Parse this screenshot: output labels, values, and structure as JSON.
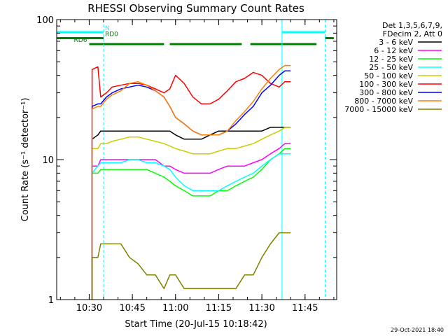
{
  "chart_data": {
    "type": "line",
    "title": "RHESSI Observing Summary Count Rates",
    "xlabel": "Start Time (20-Jul-15 10:18:42)",
    "ylabel": "Count Rate (s⁻¹ detector⁻¹)",
    "x_unit": "hh:mm",
    "xlim": [
      "10:18:42",
      "11:56:00"
    ],
    "ylim": [
      1,
      100
    ],
    "yscale": "log",
    "x_ticks": [
      "10:30",
      "10:45",
      "11:00",
      "11:15",
      "11:30",
      "11:45"
    ],
    "y_ticks": [
      "1",
      "10",
      "100"
    ],
    "legend": {
      "header": [
        "Det 1,3,5,6,7,9,",
        "FDecim 2, Att 0"
      ],
      "placement": "right"
    },
    "timestamp": "29-Oct-2021 18:40",
    "flags": [
      {
        "label": "N",
        "color": "#00ffff",
        "level": 0.88,
        "segments": [
          [
            "10:18:42",
            "10:35:00"
          ],
          [
            "11:37:00",
            "11:52:00"
          ]
        ]
      },
      {
        "label": "RD0",
        "color": "#008000",
        "level": 0.71,
        "segments": [
          [
            "10:18:42",
            "10:35:00"
          ],
          [
            "11:52:00",
            "11:55:00"
          ]
        ]
      },
      {
        "label": "RD6",
        "color": "#008000",
        "level": 0.54,
        "segments": [
          [
            "10:30:00",
            "10:56:00"
          ],
          [
            "10:58:00",
            "11:23:00"
          ],
          [
            "11:26:00",
            "11:49:00"
          ]
        ]
      }
    ],
    "vlines": [
      {
        "t": "10:35:00",
        "style": "dashed",
        "color": "#00ffff"
      },
      {
        "t": "11:37:00",
        "style": "solid",
        "color": "#00ffff"
      },
      {
        "t": "11:52:00",
        "style": "dashed",
        "color": "#00ffff"
      }
    ],
    "x": [
      "10:31",
      "10:33",
      "10:34",
      "10:36",
      "10:38",
      "10:41",
      "10:44",
      "10:47",
      "10:50",
      "10:53",
      "10:56",
      "10:58",
      "11:00",
      "11:03",
      "11:06",
      "11:09",
      "11:12",
      "11:15",
      "11:18",
      "11:21",
      "11:24",
      "11:27",
      "11:30",
      "11:33",
      "11:36",
      "11:38",
      "11:40"
    ],
    "series": [
      {
        "name": "3 - 6 keV",
        "color": "#000000",
        "values": [
          14,
          15,
          16,
          16,
          16,
          16,
          16,
          16,
          16,
          16,
          16,
          16,
          15,
          14,
          14,
          14,
          15,
          16,
          16,
          16,
          16,
          16,
          16,
          17,
          17,
          17,
          17
        ]
      },
      {
        "name": "6 - 12 keV",
        "color": "#ff00ff",
        "values": [
          9,
          9,
          10,
          10,
          10,
          10,
          10,
          10,
          10,
          10,
          9,
          9,
          8.5,
          8,
          8,
          8,
          8,
          8.5,
          9,
          9,
          9,
          9.5,
          10,
          11,
          12,
          13,
          13
        ]
      },
      {
        "name": "12 - 25 keV",
        "color": "#00ff00",
        "values": [
          8,
          8,
          8.5,
          8.5,
          8.5,
          8.5,
          8.5,
          8.5,
          8.5,
          8,
          7.5,
          7,
          6.5,
          6,
          5.5,
          5.5,
          5.5,
          6,
          6,
          6.5,
          7,
          7.5,
          8.5,
          10,
          11,
          12,
          12
        ]
      },
      {
        "name": "25 - 50 keV",
        "color": "#00ffff",
        "values": [
          8,
          9,
          9.5,
          9.5,
          9.5,
          9.5,
          10,
          10,
          9.5,
          9.5,
          9,
          8.5,
          7.5,
          6.5,
          6,
          6,
          6,
          6,
          6.5,
          7,
          7.5,
          8,
          9,
          10,
          11,
          11,
          11
        ]
      },
      {
        "name": "50 - 100 keV",
        "color": "#cccc00",
        "values": [
          12,
          12,
          13,
          13,
          13.5,
          14,
          14.5,
          14.5,
          14,
          13.5,
          13,
          12.5,
          12,
          11.5,
          11,
          11,
          11,
          11.5,
          12,
          12,
          12.5,
          13,
          14,
          15,
          16,
          17,
          17
        ]
      },
      {
        "name": "100 - 300 keV",
        "color": "#ff0000",
        "values": [
          44,
          46,
          28,
          30,
          33,
          34,
          35,
          35,
          34,
          32,
          30,
          32,
          40,
          35,
          28,
          25,
          25,
          27,
          31,
          36,
          38,
          42,
          40,
          35,
          33,
          36,
          36
        ]
      },
      {
        "name": "300 - 800 keV",
        "color": "#0000ff",
        "values": [
          24,
          25,
          25,
          28,
          30,
          32,
          33,
          34,
          33,
          31,
          28,
          24,
          20,
          18,
          16,
          15,
          15,
          15,
          16,
          18,
          21,
          24,
          30,
          34,
          40,
          43,
          43
        ]
      },
      {
        "name": "800 - 7000 keV",
        "color": "#ff8000",
        "values": [
          23,
          24,
          24,
          27,
          29,
          31,
          35,
          36,
          34,
          31,
          28,
          24,
          20,
          18,
          16,
          15,
          15,
          15,
          16,
          19,
          22,
          26,
          32,
          38,
          44,
          47,
          47
        ]
      },
      {
        "name": "7000 - 15000 keV",
        "color": "#808000",
        "values": [
          2,
          2,
          2.5,
          2.5,
          2.5,
          2.5,
          2,
          1.8,
          1.5,
          1.5,
          1.2,
          1.5,
          1.5,
          1.2,
          1.2,
          1.2,
          1.2,
          1.2,
          1.2,
          1.2,
          1.5,
          1.5,
          2,
          2.5,
          3,
          3,
          3
        ]
      }
    ]
  }
}
